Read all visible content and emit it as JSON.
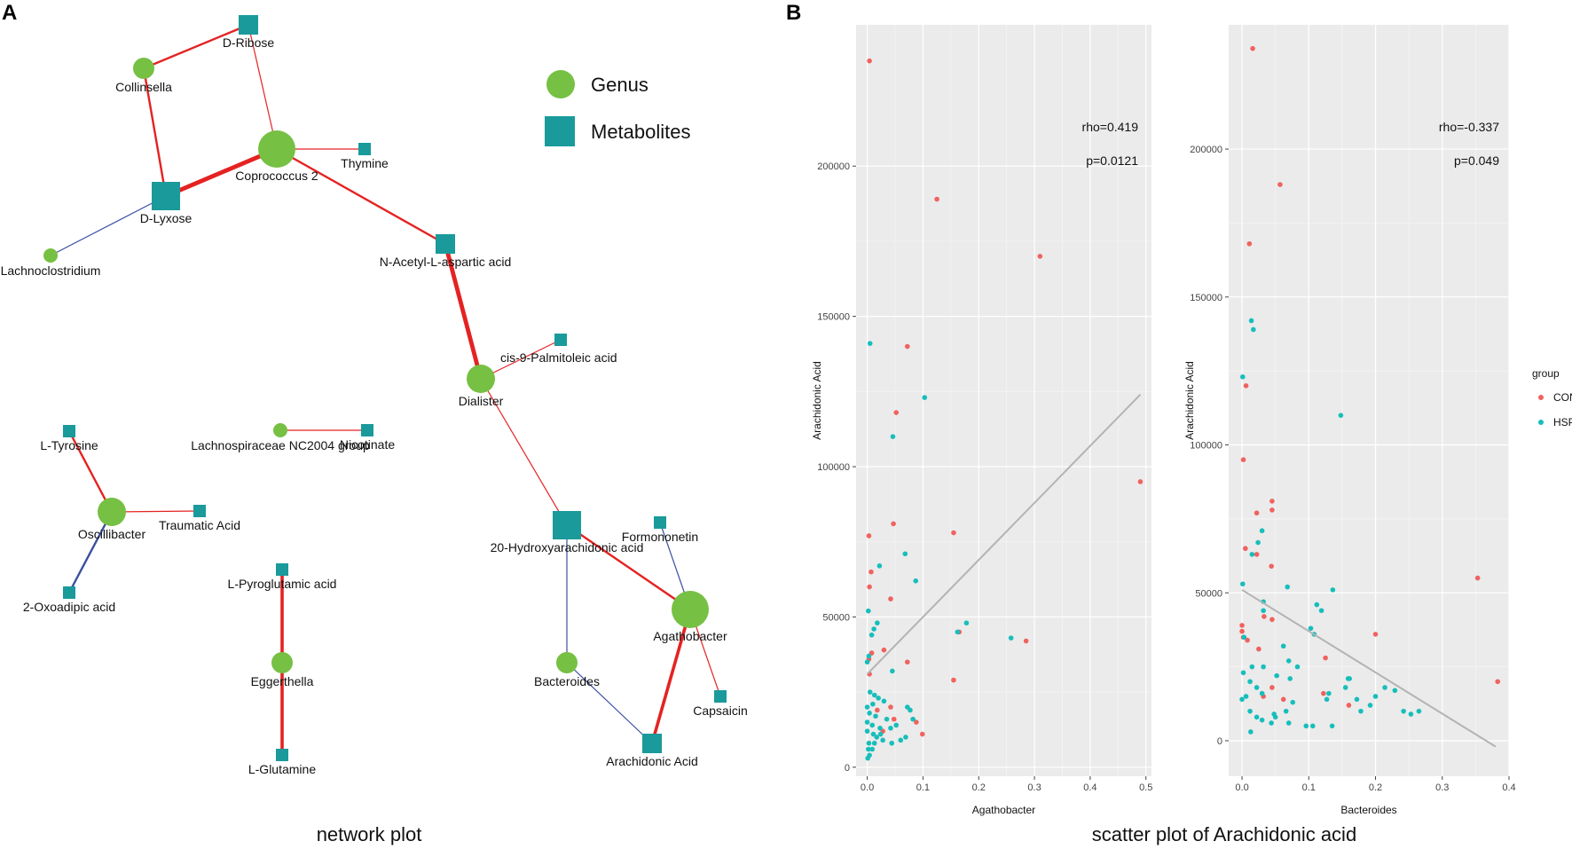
{
  "panel_a": {
    "letter": "A",
    "caption": "network plot",
    "legend": {
      "genus_label": "Genus",
      "metabolite_label": "Metabolites",
      "genus_color": "#76c043",
      "metabolite_color": "#1a9a9b"
    },
    "edge_colors": {
      "positive": "#e52222",
      "negative": "#3a4fa1"
    }
  },
  "network": {
    "nodes": [
      {
        "id": "collinsella",
        "label": "Collinsella",
        "type": "genus",
        "size": "small"
      },
      {
        "id": "d-ribose",
        "label": "D-Ribose",
        "type": "metabolite",
        "size": "medium"
      },
      {
        "id": "coprococcus-2",
        "label": "Coprococcus 2",
        "type": "genus",
        "size": "large"
      },
      {
        "id": "thymine",
        "label": "Thymine",
        "type": "metabolite",
        "size": "small"
      },
      {
        "id": "d-lyxose",
        "label": "D-Lyxose",
        "type": "metabolite",
        "size": "large"
      },
      {
        "id": "lachnoclostridium",
        "label": "Lachnoclostridium",
        "type": "genus",
        "size": "tiny"
      },
      {
        "id": "n-acetyl-l-aspartic-acid",
        "label": "N-Acetyl-L-aspartic acid",
        "type": "metabolite",
        "size": "medium"
      },
      {
        "id": "cis-9-palmitoleic-acid",
        "label": "cis-9-Palmitoleic acid",
        "type": "metabolite",
        "size": "small"
      },
      {
        "id": "dialister",
        "label": "Dialister",
        "type": "genus",
        "size": "medium"
      },
      {
        "id": "l-tyrosine",
        "label": "L-Tyrosine",
        "type": "metabolite",
        "size": "small"
      },
      {
        "id": "lachnospiraceae-nc2004-group",
        "label": "Lachnospiraceae NC2004 group",
        "type": "genus",
        "size": "tiny"
      },
      {
        "id": "nicotinate",
        "label": "Nicotinate",
        "type": "metabolite",
        "size": "small"
      },
      {
        "id": "oscillibacter",
        "label": "Oscillibacter",
        "type": "genus",
        "size": "medium"
      },
      {
        "id": "traumatic-acid",
        "label": "Traumatic Acid",
        "type": "metabolite",
        "size": "small"
      },
      {
        "id": "2-oxoadipic-acid",
        "label": "2-Oxoadipic acid",
        "type": "metabolite",
        "size": "small"
      },
      {
        "id": "l-pyroglutamic-acid",
        "label": "L-Pyroglutamic acid",
        "type": "metabolite",
        "size": "small"
      },
      {
        "id": "eggerthella",
        "label": "Eggerthella",
        "type": "genus",
        "size": "small"
      },
      {
        "id": "l-glutamine",
        "label": "L-Glutamine",
        "type": "metabolite",
        "size": "small"
      },
      {
        "id": "20-hydroxyarachidonic-acid",
        "label": "20-Hydroxyarachidonic acid",
        "type": "metabolite",
        "size": "large"
      },
      {
        "id": "formononetin",
        "label": "Formononetin",
        "type": "metabolite",
        "size": "small"
      },
      {
        "id": "agathobacter",
        "label": "Agathobacter",
        "type": "genus",
        "size": "large"
      },
      {
        "id": "bacteroides",
        "label": "Bacteroides",
        "type": "genus",
        "size": "small"
      },
      {
        "id": "capsaicin",
        "label": "Capsaicin",
        "type": "metabolite",
        "size": "small"
      },
      {
        "id": "arachidonic-acid",
        "label": "Arachidonic Acid",
        "type": "metabolite",
        "size": "medium"
      }
    ],
    "edges": [
      {
        "source": "collinsella",
        "target": "d-ribose",
        "sign": "positive",
        "weight": 2
      },
      {
        "source": "d-ribose",
        "target": "coprococcus-2",
        "sign": "positive",
        "weight": 1
      },
      {
        "source": "collinsella",
        "target": "d-lyxose",
        "sign": "positive",
        "weight": 2
      },
      {
        "source": "coprococcus-2",
        "target": "d-lyxose",
        "sign": "positive",
        "weight": 4
      },
      {
        "source": "coprococcus-2",
        "target": "thymine",
        "sign": "positive",
        "weight": 1
      },
      {
        "source": "coprococcus-2",
        "target": "n-acetyl-l-aspartic-acid",
        "sign": "positive",
        "weight": 2
      },
      {
        "source": "d-lyxose",
        "target": "lachnoclostridium",
        "sign": "negative",
        "weight": 1
      },
      {
        "source": "n-acetyl-l-aspartic-acid",
        "target": "dialister",
        "sign": "positive",
        "weight": 4
      },
      {
        "source": "dialister",
        "target": "cis-9-palmitoleic-acid",
        "sign": "positive",
        "weight": 1
      },
      {
        "source": "dialister",
        "target": "20-hydroxyarachidonic-acid",
        "sign": "positive",
        "weight": 1
      },
      {
        "source": "l-tyrosine",
        "target": "oscillibacter",
        "sign": "positive",
        "weight": 2
      },
      {
        "source": "oscillibacter",
        "target": "traumatic-acid",
        "sign": "positive",
        "weight": 1
      },
      {
        "source": "oscillibacter",
        "target": "2-oxoadipic-acid",
        "sign": "negative",
        "weight": 2
      },
      {
        "source": "lachnospiraceae-nc2004-group",
        "target": "nicotinate",
        "sign": "positive",
        "weight": 1
      },
      {
        "source": "l-pyroglutamic-acid",
        "target": "eggerthella",
        "sign": "positive",
        "weight": 3
      },
      {
        "source": "eggerthella",
        "target": "l-glutamine",
        "sign": "positive",
        "weight": 3
      },
      {
        "source": "20-hydroxyarachidonic-acid",
        "target": "agathobacter",
        "sign": "positive",
        "weight": 2
      },
      {
        "source": "20-hydroxyarachidonic-acid",
        "target": "bacteroides",
        "sign": "negative",
        "weight": 1
      },
      {
        "source": "formononetin",
        "target": "agathobacter",
        "sign": "negative",
        "weight": 1
      },
      {
        "source": "agathobacter",
        "target": "capsaicin",
        "sign": "positive",
        "weight": 1
      },
      {
        "source": "agathobacter",
        "target": "arachidonic-acid",
        "sign": "positive",
        "weight": 3
      },
      {
        "source": "bacteroides",
        "target": "arachidonic-acid",
        "sign": "negative",
        "weight": 1
      }
    ]
  },
  "panel_b": {
    "letter": "B",
    "caption": "scatter plot of Arachidonic acid",
    "legend_title": "group",
    "legend_items": [
      "CON",
      "HSP"
    ],
    "group_colors": {
      "CON": "#f0625f",
      "HSP": "#17bebb"
    }
  },
  "chart_data": [
    {
      "type": "scatter",
      "title": "",
      "xlabel": "Agathobacter",
      "ylabel": "Arachidonic Acid",
      "xlim": [
        -0.02,
        0.51
      ],
      "ylim": [
        -3000,
        247000
      ],
      "xticks": [
        0.0,
        0.1,
        0.2,
        0.3,
        0.4,
        0.5
      ],
      "xtick_labels": [
        "0.0",
        "0.1",
        "0.2",
        "0.3",
        "0.4",
        "0.5"
      ],
      "yticks": [
        0,
        50000,
        100000,
        150000,
        200000
      ],
      "ytick_labels": [
        "0",
        "50000",
        "100000",
        "150000",
        "200000"
      ],
      "annotations": [
        "rho=0.419",
        "p=0.0121"
      ],
      "fit_line": {
        "x": [
          0.0,
          0.49
        ],
        "y": [
          31000,
          124000
        ]
      },
      "series": [
        {
          "name": "CON",
          "points": [
            [
              0.004,
              235000
            ],
            [
              0.125,
              189000
            ],
            [
              0.31,
              170000
            ],
            [
              0.072,
              140000
            ],
            [
              0.052,
              118000
            ],
            [
              0.49,
              95000
            ],
            [
              0.047,
              81000
            ],
            [
              0.003,
              77000
            ],
            [
              0.155,
              78000
            ],
            [
              0.007,
              65000
            ],
            [
              0.004,
              60000
            ],
            [
              0.042,
              56000
            ],
            [
              0.165,
              45000
            ],
            [
              0.285,
              42000
            ],
            [
              0.03,
              39000
            ],
            [
              0.008,
              38000
            ],
            [
              0.003,
              36000
            ],
            [
              0.072,
              35000
            ],
            [
              0.155,
              29000
            ],
            [
              0.042,
              20000
            ],
            [
              0.018,
              19000
            ],
            [
              0.048,
              16000
            ],
            [
              0.088,
              15000
            ],
            [
              0.028,
              12000
            ],
            [
              0.099,
              11000
            ],
            [
              0.004,
              31000
            ]
          ]
        },
        {
          "name": "HSP",
          "points": [
            [
              0.005,
              141000
            ],
            [
              0.103,
              123000
            ],
            [
              0.046,
              110000
            ],
            [
              0.068,
              71000
            ],
            [
              0.022,
              67000
            ],
            [
              0.087,
              62000
            ],
            [
              0.002,
              52000
            ],
            [
              0.018,
              48000
            ],
            [
              0.178,
              48000
            ],
            [
              0.162,
              45000
            ],
            [
              0.008,
              44000
            ],
            [
              0.258,
              43000
            ],
            [
              0.012,
              46000
            ],
            [
              0.003,
              37000
            ],
            [
              0.0,
              35000
            ],
            [
              0.045,
              32000
            ],
            [
              0.005,
              25000
            ],
            [
              0.013,
              24000
            ],
            [
              0.02,
              23000
            ],
            [
              0.01,
              21000
            ],
            [
              0.03,
              22000
            ],
            [
              0.0,
              20000
            ],
            [
              0.004,
              18000
            ],
            [
              0.015,
              17000
            ],
            [
              0.072,
              20000
            ],
            [
              0.077,
              19000
            ],
            [
              0.0,
              15000
            ],
            [
              0.009,
              14000
            ],
            [
              0.023,
              13000
            ],
            [
              0.042,
              13000
            ],
            [
              0.052,
              14000
            ],
            [
              0.0,
              12000
            ],
            [
              0.011,
              11000
            ],
            [
              0.017,
              10000
            ],
            [
              0.028,
              9000
            ],
            [
              0.003,
              8000
            ],
            [
              0.069,
              10000
            ],
            [
              0.06,
              9000
            ],
            [
              0.044,
              8000
            ],
            [
              0.002,
              6000
            ],
            [
              0.009,
              6000
            ],
            [
              0.004,
              4000
            ],
            [
              0.001,
              3000
            ],
            [
              0.035,
              16000
            ],
            [
              0.082,
              16000
            ],
            [
              0.024,
              11000
            ],
            [
              0.013,
              8000
            ]
          ]
        }
      ]
    },
    {
      "type": "scatter",
      "title": "",
      "xlabel": "Bacteroides",
      "ylabel": "Arachidonic Acid",
      "xlim": [
        -0.02,
        0.4
      ],
      "ylim": [
        -12000,
        242000
      ],
      "xticks": [
        0.0,
        0.1,
        0.2,
        0.3,
        0.4
      ],
      "xtick_labels": [
        "0.0",
        "0.1",
        "0.2",
        "0.3",
        "0.4"
      ],
      "yticks": [
        0,
        50000,
        100000,
        150000,
        200000
      ],
      "ytick_labels": [
        "0",
        "50000",
        "100000",
        "150000",
        "200000"
      ],
      "annotations": [
        "rho=-0.337",
        "p=0.049"
      ],
      "fit_line": {
        "x": [
          0.0,
          0.38
        ],
        "y": [
          51000,
          -2000
        ]
      },
      "series": [
        {
          "name": "CON",
          "points": [
            [
              0.016,
              234000
            ],
            [
              0.057,
              188000
            ],
            [
              0.011,
              168000
            ],
            [
              0.006,
              120000
            ],
            [
              0.002,
              95000
            ],
            [
              0.045,
              81000
            ],
            [
              0.045,
              78000
            ],
            [
              0.022,
              77000
            ],
            [
              0.005,
              65000
            ],
            [
              0.022,
              63000
            ],
            [
              0.044,
              59000
            ],
            [
              0.353,
              55000
            ],
            [
              0.033,
              42000
            ],
            [
              0.045,
              41000
            ],
            [
              0.0,
              39000
            ],
            [
              0.0,
              37000
            ],
            [
              0.002,
              35000
            ],
            [
              0.008,
              34000
            ],
            [
              0.2,
              36000
            ],
            [
              0.025,
              31000
            ],
            [
              0.045,
              18000
            ],
            [
              0.062,
              14000
            ],
            [
              0.125,
              28000
            ],
            [
              0.122,
              16000
            ],
            [
              0.16,
              12000
            ],
            [
              0.383,
              20000
            ],
            [
              0.032,
              15000
            ]
          ]
        },
        {
          "name": "HSP",
          "points": [
            [
              0.014,
              142000
            ],
            [
              0.017,
              139000
            ],
            [
              0.001,
              123000
            ],
            [
              0.148,
              110000
            ],
            [
              0.03,
              71000
            ],
            [
              0.024,
              67000
            ],
            [
              0.015,
              63000
            ],
            [
              0.001,
              53000
            ],
            [
              0.068,
              52000
            ],
            [
              0.136,
              51000
            ],
            [
              0.032,
              47000
            ],
            [
              0.032,
              44000
            ],
            [
              0.112,
              46000
            ],
            [
              0.119,
              44000
            ],
            [
              0.103,
              38000
            ],
            [
              0.108,
              36000
            ],
            [
              0.003,
              35000
            ],
            [
              0.062,
              32000
            ],
            [
              0.07,
              27000
            ],
            [
              0.032,
              25000
            ],
            [
              0.083,
              25000
            ],
            [
              0.015,
              25000
            ],
            [
              0.002,
              23000
            ],
            [
              0.052,
              22000
            ],
            [
              0.072,
              21000
            ],
            [
              0.161,
              21000
            ],
            [
              0.159,
              21000
            ],
            [
              0.155,
              18000
            ],
            [
              0.13,
              16000
            ],
            [
              0.214,
              18000
            ],
            [
              0.2,
              15000
            ],
            [
              0.172,
              14000
            ],
            [
              0.127,
              14000
            ],
            [
              0.076,
              13000
            ],
            [
              0.0,
              14000
            ],
            [
              0.066,
              10000
            ],
            [
              0.012,
              10000
            ],
            [
              0.022,
              8000
            ],
            [
              0.03,
              7000
            ],
            [
              0.05,
              8000
            ],
            [
              0.044,
              6000
            ],
            [
              0.07,
              6000
            ],
            [
              0.096,
              5000
            ],
            [
              0.106,
              5000
            ],
            [
              0.135,
              5000
            ],
            [
              0.03,
              16000
            ],
            [
              0.022,
              18000
            ],
            [
              0.012,
              20000
            ],
            [
              0.006,
              15000
            ],
            [
              0.048,
              9000
            ],
            [
              0.229,
              17000
            ],
            [
              0.192,
              12000
            ],
            [
              0.242,
              10000
            ],
            [
              0.253,
              9000
            ],
            [
              0.265,
              10000
            ],
            [
              0.178,
              10000
            ],
            [
              0.013,
              3000
            ]
          ]
        }
      ]
    }
  ]
}
